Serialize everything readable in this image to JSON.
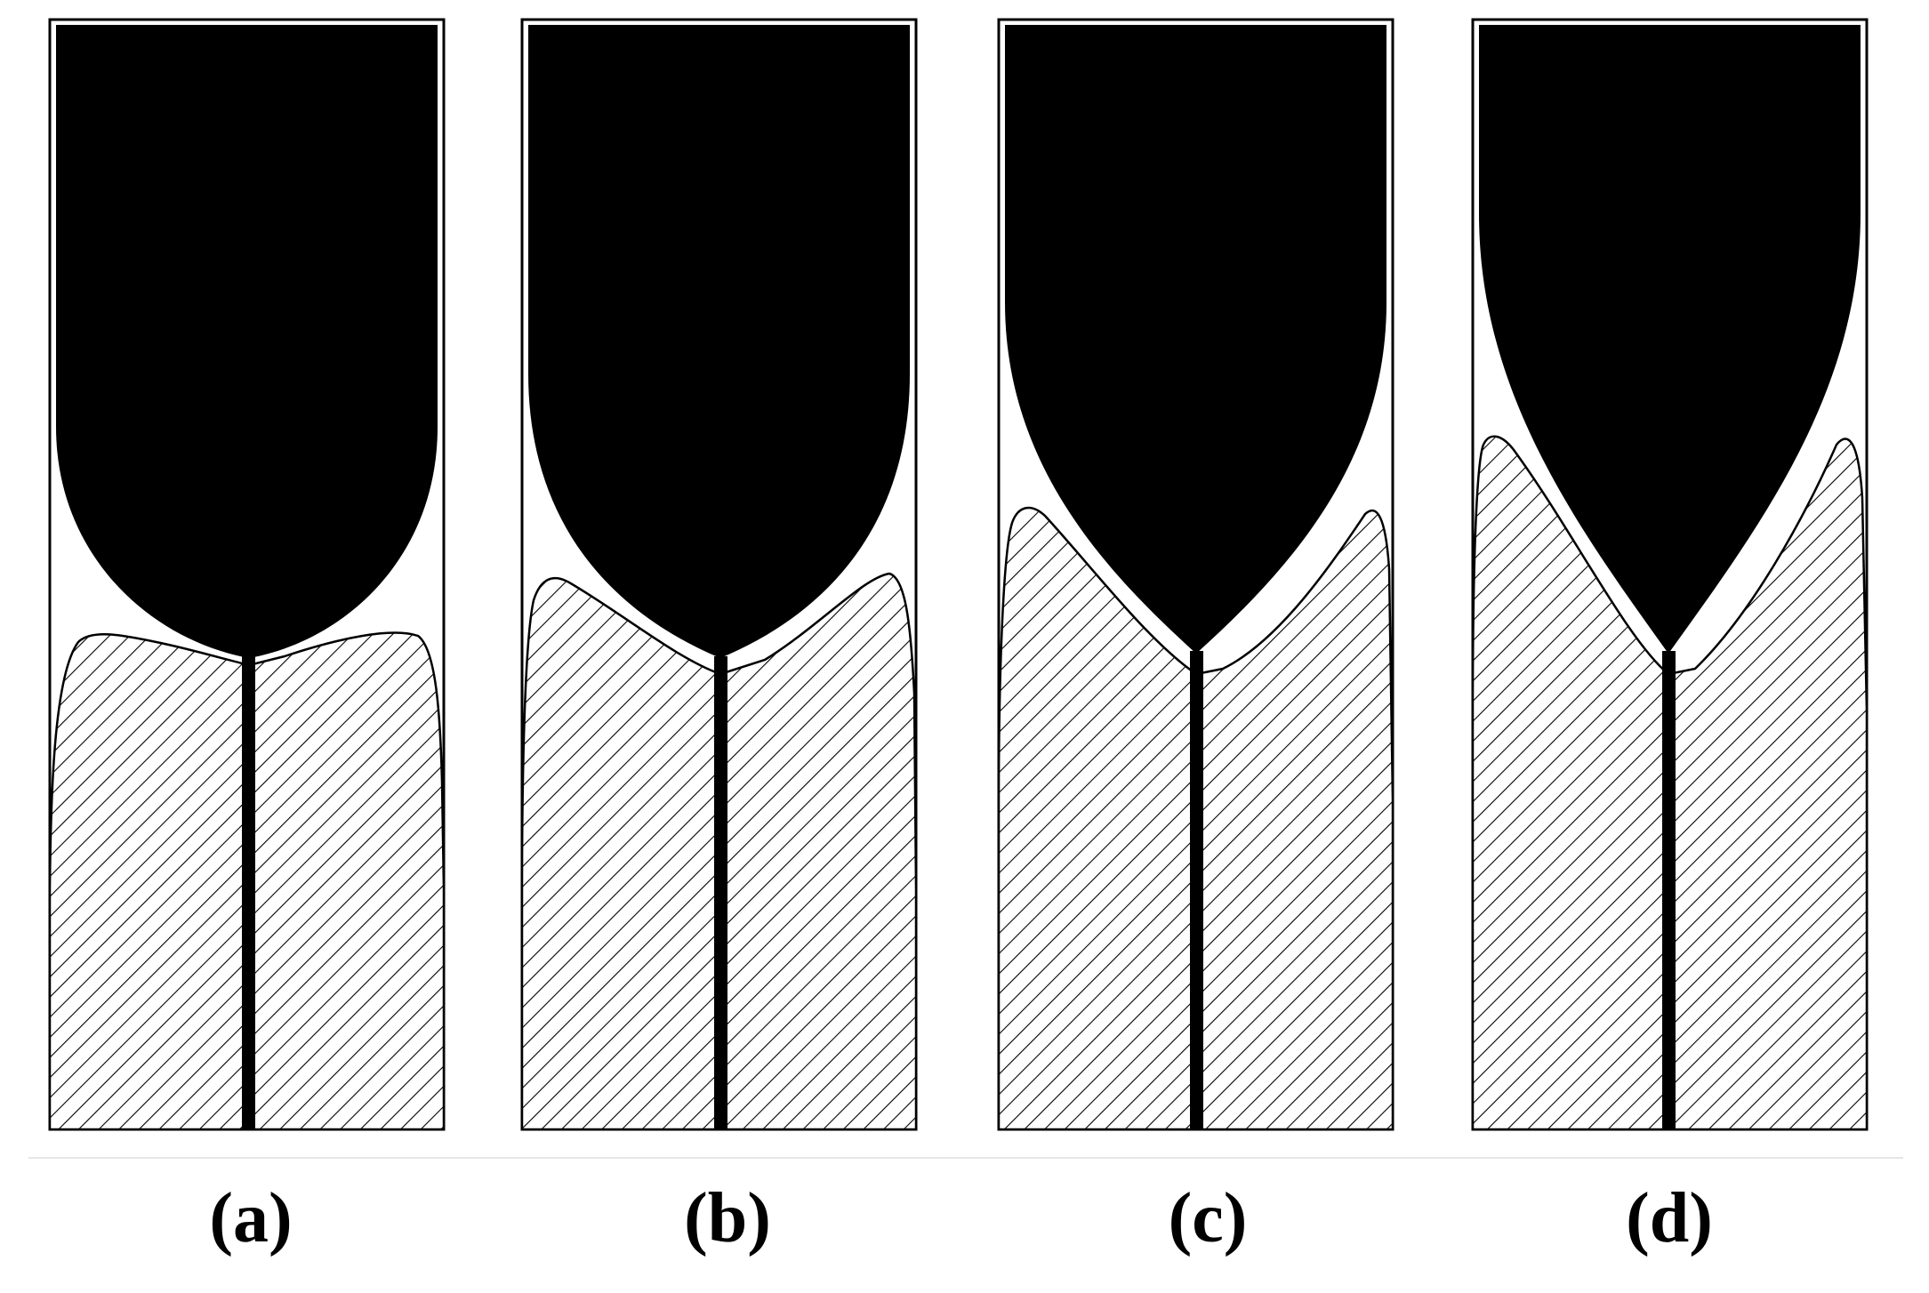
{
  "panels": [
    {
      "label": "(a)"
    },
    {
      "label": "(b)"
    },
    {
      "label": "(c)"
    },
    {
      "label": "(d)"
    }
  ],
  "colors": {
    "ink": "#000000",
    "background": "#ffffff",
    "separator": "#e6e6e6"
  }
}
